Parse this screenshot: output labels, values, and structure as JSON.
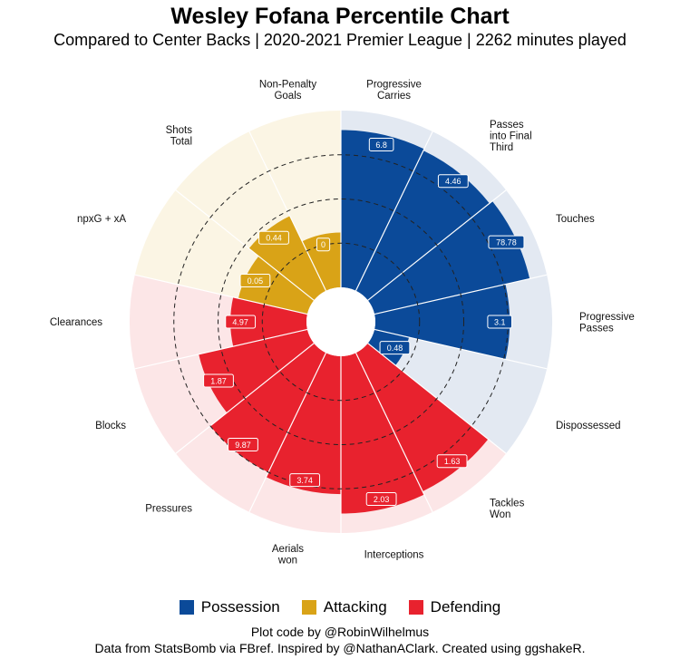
{
  "chart_data": {
    "type": "polar-bar",
    "title": "Wesley Fofana Percentile Chart",
    "subtitle": "Compared to Center Backs | 2020-2021 Premier League | 2262 minutes played",
    "rlim": [
      0,
      100
    ],
    "reference_circles": [
      25,
      50,
      75
    ],
    "categories": [
      {
        "label": "Progressive Carries",
        "lines": [
          "Progressive",
          "Carries"
        ],
        "group": "Possession",
        "percentile": 89,
        "value": "6.8"
      },
      {
        "label": "Passes into Final Third",
        "lines": [
          "Passes",
          "into Final",
          "Third"
        ],
        "group": "Possession",
        "percentile": 88,
        "value": "4.46"
      },
      {
        "label": "Touches",
        "lines": [
          "Touches"
        ],
        "group": "Possession",
        "percentile": 90,
        "value": "78.78"
      },
      {
        "label": "Progressive Passes",
        "lines": [
          "Progressive",
          "Passes"
        ],
        "group": "Possession",
        "percentile": 76,
        "value": "3.1"
      },
      {
        "label": "Dispossessed",
        "lines": [
          "Dispossessed"
        ],
        "group": "Possession",
        "percentile": 20,
        "value": "0.48"
      },
      {
        "label": "Tackles Won",
        "lines": [
          "Tackles",
          "Won"
        ],
        "group": "Defending",
        "percentile": 87,
        "value": "1.63"
      },
      {
        "label": "Interceptions",
        "lines": [
          "Interceptions"
        ],
        "group": "Defending",
        "percentile": 89,
        "value": "2.03"
      },
      {
        "label": "Aerials won",
        "lines": [
          "Aerials",
          "won"
        ],
        "group": "Defending",
        "percentile": 78,
        "value": "3.74"
      },
      {
        "label": "Pressures",
        "lines": [
          "Pressures"
        ],
        "group": "Defending",
        "percentile": 75,
        "value": "9.87"
      },
      {
        "label": "Blocks",
        "lines": [
          "Blocks"
        ],
        "group": "Defending",
        "percentile": 63,
        "value": "1.87"
      },
      {
        "label": "Clearances",
        "lines": [
          "Clearances"
        ],
        "group": "Defending",
        "percentile": 43,
        "value": "4.97"
      },
      {
        "label": "npxG + xA",
        "lines": [
          "npxG + xA"
        ],
        "group": "Attacking",
        "percentile": 40,
        "value": "0.05"
      },
      {
        "label": "Shots Total",
        "lines": [
          "Shots",
          "Total"
        ],
        "group": "Attacking",
        "percentile": 47,
        "value": "0.44"
      },
      {
        "label": "Non-Penalty Goals",
        "lines": [
          "Non-Penalty",
          "Goals"
        ],
        "group": "Attacking",
        "percentile": 31,
        "value": "0"
      }
    ],
    "legend": [
      "Possession",
      "Attacking",
      "Defending"
    ],
    "legend_position": "bottom"
  },
  "colors": {
    "Possession": "#0b4a99",
    "Attacking": "#d9a317",
    "Defending": "#e8222e",
    "Possession_bg": "#e3e9f2",
    "Attacking_bg": "#fbf5e4",
    "Defending_bg": "#fce6e7"
  },
  "caption": {
    "line1": "Plot code by @RobinWilhelmus",
    "line2": "Data from StatsBomb via FBref. Inspired by @NathanAClark. Created using ggshakeR."
  }
}
